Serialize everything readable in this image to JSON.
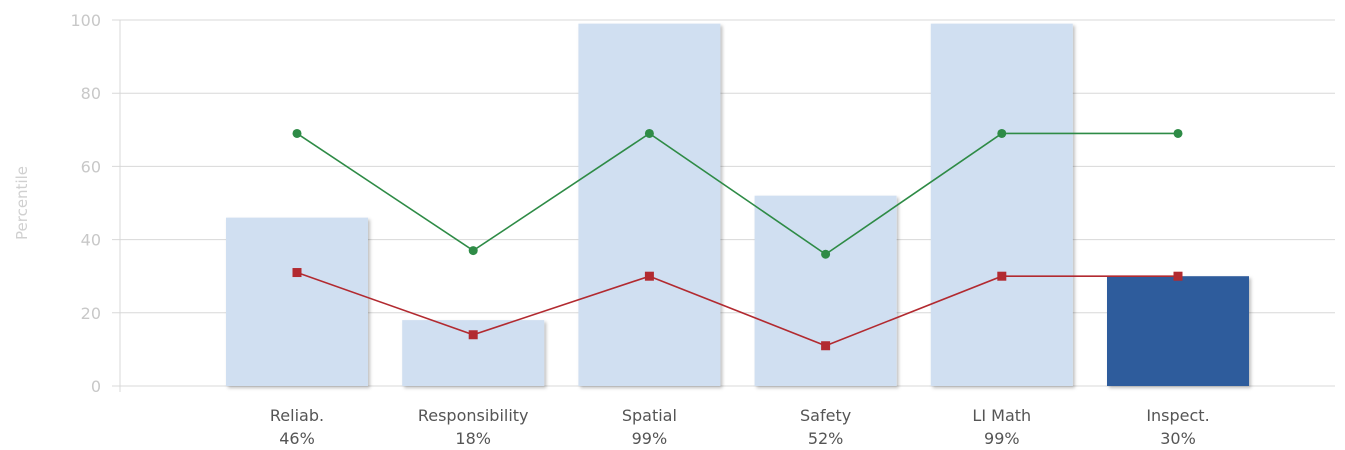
{
  "chart_data": {
    "type": "bar",
    "title": "",
    "xlabel": "",
    "ylabel": "Percentile",
    "ylim": [
      0,
      100
    ],
    "yticks": [
      0,
      20,
      40,
      60,
      80,
      100
    ],
    "grid": true,
    "legend": "none",
    "categories": [
      "Reliab.",
      "Responsibility",
      "Spatial",
      "Safety",
      "LI Math",
      "Inspect."
    ],
    "category_sublabels": [
      "46%",
      "18%",
      "99%",
      "52%",
      "99%",
      "30%"
    ],
    "series": [
      {
        "kind": "bar",
        "values": [
          46,
          18,
          99,
          52,
          99,
          30
        ]
      },
      {
        "kind": "line",
        "marker": "circle",
        "values": [
          69,
          37,
          69,
          36,
          69,
          69
        ]
      },
      {
        "kind": "line",
        "marker": "square",
        "values": [
          31,
          14,
          30,
          11,
          30,
          30
        ]
      }
    ],
    "highlighted_category": "Inspect.",
    "colors": {
      "bar": "#d0dff1",
      "bar_highlight": "#2d5b9c",
      "upper_line": "#2e8b46",
      "lower_line": "#b22a30",
      "grid": "#d8d8d8"
    }
  }
}
